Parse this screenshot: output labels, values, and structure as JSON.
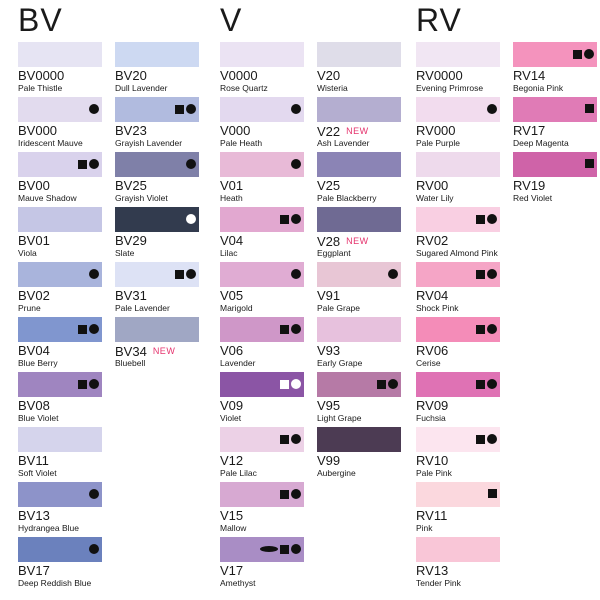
{
  "groups": [
    {
      "title": "BV",
      "columns": [
        [
          {
            "code": "BV0000",
            "name": "Pale Thistle",
            "color": "#e6e4f3",
            "marks": []
          },
          {
            "code": "BV000",
            "name": "Iridescent Mauve",
            "color": "#e2dbee",
            "marks": [
              "circle"
            ]
          },
          {
            "code": "BV00",
            "name": "Mauve Shadow",
            "color": "#d9d2ec",
            "marks": [
              "square",
              "circle"
            ]
          },
          {
            "code": "BV01",
            "name": "Viola",
            "color": "#c5c6e5",
            "marks": []
          },
          {
            "code": "BV02",
            "name": "Prune",
            "color": "#a9b4dc",
            "marks": [
              "circle"
            ]
          },
          {
            "code": "BV04",
            "name": "Blue Berry",
            "color": "#8096cf",
            "marks": [
              "square",
              "circle"
            ]
          },
          {
            "code": "BV08",
            "name": "Blue Violet",
            "color": "#9f85c0",
            "marks": [
              "square",
              "circle"
            ]
          },
          {
            "code": "BV11",
            "name": "Soft Violet",
            "color": "#d5d4ec",
            "marks": []
          },
          {
            "code": "BV13",
            "name": "Hydrangea Blue",
            "color": "#8d93c9",
            "marks": [
              "circle"
            ]
          },
          {
            "code": "BV17",
            "name": "Deep Reddish Blue",
            "color": "#6b81bd",
            "marks": [
              "circle"
            ]
          }
        ],
        [
          {
            "code": "BV20",
            "name": "Dull Lavender",
            "color": "#cdd9f2",
            "marks": []
          },
          {
            "code": "BV23",
            "name": "Grayish Lavender",
            "color": "#b1bbdf",
            "marks": [
              "square",
              "circle"
            ]
          },
          {
            "code": "BV25",
            "name": "Grayish Violet",
            "color": "#7f80a8",
            "marks": [
              "circle"
            ]
          },
          {
            "code": "BV29",
            "name": "Slate",
            "color": "#323b4e",
            "marks": [
              "circle-white"
            ]
          },
          {
            "code": "BV31",
            "name": "Pale Lavender",
            "color": "#dde2f5",
            "marks": [
              "square",
              "circle"
            ]
          },
          {
            "code": "BV34",
            "name": "Bluebell",
            "color": "#a0a7c4",
            "marks": [],
            "new": "NEW"
          }
        ]
      ]
    },
    {
      "title": "V",
      "columns": [
        [
          {
            "code": "V0000",
            "name": "Rose Quartz",
            "color": "#ebe3f3",
            "marks": []
          },
          {
            "code": "V000",
            "name": "Pale Heath",
            "color": "#e3d9ef",
            "marks": [
              "circle"
            ]
          },
          {
            "code": "V01",
            "name": "Heath",
            "color": "#e8bad7",
            "marks": [
              "circle"
            ]
          },
          {
            "code": "V04",
            "name": "Lilac",
            "color": "#e2a8d0",
            "marks": [
              "square",
              "circle"
            ]
          },
          {
            "code": "V05",
            "name": "Marigold",
            "color": "#e0acd3",
            "marks": [
              "circle"
            ]
          },
          {
            "code": "V06",
            "name": "Lavender",
            "color": "#cf97c8",
            "marks": [
              "square",
              "circle"
            ]
          },
          {
            "code": "V09",
            "name": "Violet",
            "color": "#8b55a5",
            "marks": [
              "square-white",
              "circle-white"
            ]
          },
          {
            "code": "V12",
            "name": "Pale Lilac",
            "color": "#ecd1e6",
            "marks": [
              "square",
              "circle"
            ]
          },
          {
            "code": "V15",
            "name": "Mallow",
            "color": "#d7a9d2",
            "marks": [
              "square",
              "circle"
            ]
          },
          {
            "code": "V17",
            "name": "Amethyst",
            "color": "#a98dc5",
            "marks": [
              "ellipse",
              "square",
              "circle"
            ]
          }
        ],
        [
          {
            "code": "V20",
            "name": "Wisteria",
            "color": "#dfdde9",
            "marks": []
          },
          {
            "code": "V22",
            "name": "Ash Lavender",
            "color": "#b4aed0",
            "marks": [],
            "new": "NEW"
          },
          {
            "code": "V25",
            "name": "Pale Blackberry",
            "color": "#8b84b5",
            "marks": []
          },
          {
            "code": "V28",
            "name": "Eggplant",
            "color": "#6f6a93",
            "marks": [],
            "new": "NEW"
          },
          {
            "code": "V91",
            "name": "Pale Grape",
            "color": "#e8c6d5",
            "marks": [
              "circle"
            ]
          },
          {
            "code": "V93",
            "name": "Early Grape",
            "color": "#e7c1dd",
            "marks": []
          },
          {
            "code": "V95",
            "name": "Light Grape",
            "color": "#b67aa6",
            "marks": [
              "square",
              "circle"
            ]
          },
          {
            "code": "V99",
            "name": "Aubergine",
            "color": "#4c3b53",
            "marks": []
          }
        ]
      ]
    },
    {
      "title": "RV",
      "columns": [
        [
          {
            "code": "RV0000",
            "name": "Evening Primrose",
            "color": "#f1e6f3",
            "marks": []
          },
          {
            "code": "RV000",
            "name": "Pale Purple",
            "color": "#f2dcee",
            "marks": [
              "circle"
            ]
          },
          {
            "code": "RV00",
            "name": "Water Lily",
            "color": "#eedaec",
            "marks": []
          },
          {
            "code": "RV02",
            "name": "Sugared Almond Pink",
            "color": "#f9cfe2",
            "marks": [
              "square",
              "circle"
            ]
          },
          {
            "code": "RV04",
            "name": "Shock Pink",
            "color": "#f5a5c6",
            "marks": [
              "square",
              "circle"
            ]
          },
          {
            "code": "RV06",
            "name": "Cerise",
            "color": "#f48cb8",
            "marks": [
              "square",
              "circle"
            ]
          },
          {
            "code": "RV09",
            "name": "Fuchsia",
            "color": "#df72b4",
            "marks": [
              "square",
              "circle"
            ]
          },
          {
            "code": "RV10",
            "name": "Pale Pink",
            "color": "#fce5ef",
            "marks": [
              "square",
              "circle"
            ]
          },
          {
            "code": "RV11",
            "name": "Pink",
            "color": "#fbd8de",
            "marks": [
              "square"
            ]
          },
          {
            "code": "RV13",
            "name": "Tender Pink",
            "color": "#f9c6d7",
            "marks": []
          }
        ],
        [
          {
            "code": "RV14",
            "name": "Begonia Pink",
            "color": "#f493bd",
            "marks": [
              "square",
              "circle"
            ]
          },
          {
            "code": "RV17",
            "name": "Deep Magenta",
            "color": "#e07bb6",
            "marks": [
              "square"
            ]
          },
          {
            "code": "RV19",
            "name": "Red Violet",
            "color": "#cf63a8",
            "marks": [
              "square"
            ]
          }
        ]
      ]
    }
  ]
}
